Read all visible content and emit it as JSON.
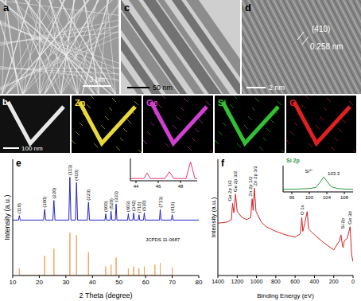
{
  "panels": {
    "a": {
      "label": "a",
      "scale_bar": "3 μm"
    },
    "c": {
      "label": "c",
      "scale_bar": "50 nm"
    },
    "d": {
      "label": "d",
      "scale_bar": "2 nm",
      "plane": "(410)",
      "spacing": "0.258 nm"
    },
    "b": {
      "label": "b",
      "scale_bar": "100 nm",
      "maps": [
        {
          "element": "Zn",
          "color": "#e8d83a"
        },
        {
          "element": "Ge",
          "color": "#d040d0"
        },
        {
          "element": "Si",
          "color": "#30c030"
        },
        {
          "element": "O",
          "color": "#e02020"
        }
      ]
    }
  },
  "chart_data": [
    {
      "panel": "e",
      "type": "line",
      "x_label": "2 Theta (degree)",
      "y_label": "Intensity (a.u.)",
      "xlim": [
        10,
        80
      ],
      "xticks": [
        10,
        20,
        30,
        40,
        50,
        60,
        70,
        80
      ],
      "ylim": [
        0,
        130
      ],
      "tick_labels": "x",
      "series": [
        {
          "type": "line",
          "color": "#2323c8",
          "x": [
            10,
            12.2,
            12.5,
            12.8,
            21.6,
            22,
            22.4,
            25.1,
            25.5,
            25.9,
            31.1,
            31.5,
            31.9,
            33.6,
            34,
            34.4,
            38.1,
            38.5,
            38.9,
            44.7,
            45,
            45.3,
            46.7,
            47,
            47.3,
            48.6,
            48.9,
            49.2,
            53.2,
            53.5,
            53.8,
            55.2,
            55.5,
            55.8,
            57.2,
            57.5,
            57.8,
            59.2,
            59.5,
            59.8,
            65.2,
            65.5,
            65.8,
            69.7,
            70,
            70.3,
            80
          ],
          "values": [
            62,
            62,
            67,
            62,
            62,
            74,
            62,
            62,
            84,
            62,
            62,
            110,
            62,
            62,
            104,
            62,
            62,
            82,
            62,
            62,
            69,
            62,
            62,
            72,
            62,
            62,
            80,
            62,
            62,
            69,
            62,
            62,
            70,
            62,
            62,
            68,
            62,
            62,
            70,
            62,
            62,
            74,
            62,
            62,
            68,
            62,
            62
          ]
        },
        {
          "type": "stem",
          "color": "#f4a25a",
          "x": [
            12.5,
            22,
            25.5,
            31.5,
            34,
            38.5,
            45,
            47,
            48.9,
            53.5,
            55.5,
            57.5,
            59.5,
            63.5,
            65.5,
            70
          ],
          "values": [
            8,
            22,
            30,
            48,
            45,
            26,
            10,
            12,
            20,
            8,
            10,
            8,
            10,
            12,
            14,
            9
          ]
        }
      ],
      "peak_labels": [
        {
          "text": "(110)",
          "x": 12.5,
          "y": 69
        },
        {
          "text": "(300)",
          "x": 22,
          "y": 76
        },
        {
          "text": "(220)",
          "x": 25.5,
          "y": 86
        },
        {
          "text": "(113)",
          "x": 31.5,
          "y": 112
        },
        {
          "text": "(410)",
          "x": 34,
          "y": 106
        },
        {
          "text": "(223)",
          "x": 38.5,
          "y": 84
        },
        {
          "text": "(600)",
          "x": 45,
          "y": 71
        },
        {
          "text": "(520)",
          "x": 47,
          "y": 74
        },
        {
          "text": "(333)",
          "x": 48.9,
          "y": 82
        },
        {
          "text": "(603)",
          "x": 53.5,
          "y": 71
        },
        {
          "text": "(342)",
          "x": 55.5,
          "y": 72
        },
        {
          "text": "(710)",
          "x": 57.5,
          "y": 70
        },
        {
          "text": "(630)",
          "x": 59.5,
          "y": 72
        },
        {
          "text": "(713)",
          "x": 65.5,
          "y": 76
        },
        {
          "text": "(416)",
          "x": 70,
          "y": 70
        }
      ],
      "annotations": [
        {
          "text": "JCPDS 11-0687",
          "x": 60,
          "y": 38
        }
      ],
      "inset": {
        "type": "line",
        "xlim": [
          43.5,
          49.5
        ],
        "xticks": [
          44,
          46,
          48
        ],
        "ylim": [
          0,
          100
        ],
        "tick_labels": "x",
        "series": [
          {
            "color": "#e8336b",
            "x": [
              43.5,
              44.7,
              45,
              45.3,
              46.6,
              47,
              47.4,
              48.5,
              48.9,
              49.3,
              49.5
            ],
            "values": [
              10,
              10,
              35,
              10,
              10,
              40,
              10,
              10,
              85,
              10,
              10
            ]
          }
        ]
      }
    },
    {
      "panel": "f",
      "type": "line",
      "x_label": "Binding Energy (eV)",
      "y_label": "Intensity (a.u.)",
      "xlim": [
        1400,
        0
      ],
      "xticks": [
        1400,
        1200,
        1000,
        800,
        600,
        400,
        200,
        0
      ],
      "ylim": [
        0,
        100
      ],
      "tick_labels": "x",
      "series": [
        {
          "color": "#d42020",
          "x": [
            1400,
            1300,
            1260,
            1248,
            1235,
            1217,
            1200,
            1150,
            1100,
            1060,
            1045,
            1035,
            1022,
            1005,
            950,
            900,
            800,
            700,
            600,
            545,
            531,
            520,
            500,
            475,
            460,
            400,
            300,
            200,
            140,
            125,
            110,
            103,
            90,
            60,
            30,
            15,
            0
          ],
          "values": [
            45,
            46,
            48,
            62,
            54,
            70,
            55,
            50,
            48,
            50,
            66,
            56,
            75,
            55,
            46,
            42,
            38,
            35,
            33,
            36,
            50,
            38,
            45,
            55,
            40,
            35,
            28,
            22,
            30,
            35,
            26,
            24,
            30,
            32,
            42,
            18,
            12
          ]
        }
      ],
      "peak_labels": [
        {
          "text": "Ge 2p 1/2",
          "x": 1275,
          "y": 64
        },
        {
          "text": "Ge 2p 3/2",
          "x": 1215,
          "y": 72
        },
        {
          "text": "Zn 2p 1/2",
          "x": 1065,
          "y": 68
        },
        {
          "text": "Zn 2p 3/2",
          "x": 1010,
          "y": 77
        },
        {
          "text": "O 1s",
          "x": 531,
          "y": 52
        },
        {
          "text": "Si 2p",
          "x": 103,
          "y": 40
        },
        {
          "text": "Ge 3d",
          "x": 30,
          "y": 44
        }
      ],
      "inset": {
        "type": "line",
        "title": "Si 2p",
        "xlim": [
          94,
          110
        ],
        "xticks": [
          96,
          100,
          104,
          108
        ],
        "ylim": [
          0,
          140
        ],
        "tick_labels": "x",
        "series": [
          {
            "color": "#2a9a3a",
            "x": [
              94,
              97,
              100,
              101.5,
              102.5,
              103.3,
              104.1,
              105,
              106.5,
              108,
              110
            ],
            "values": [
              14,
              15,
              18,
              24,
              52,
              80,
              55,
              28,
              18,
              15,
              14
            ]
          }
        ],
        "annotations": [
          {
            "text": "Si⁴⁺",
            "x": 99,
            "y": 100
          },
          {
            "text": "103.3",
            "x": 104.2,
            "y": 88
          }
        ]
      }
    }
  ]
}
